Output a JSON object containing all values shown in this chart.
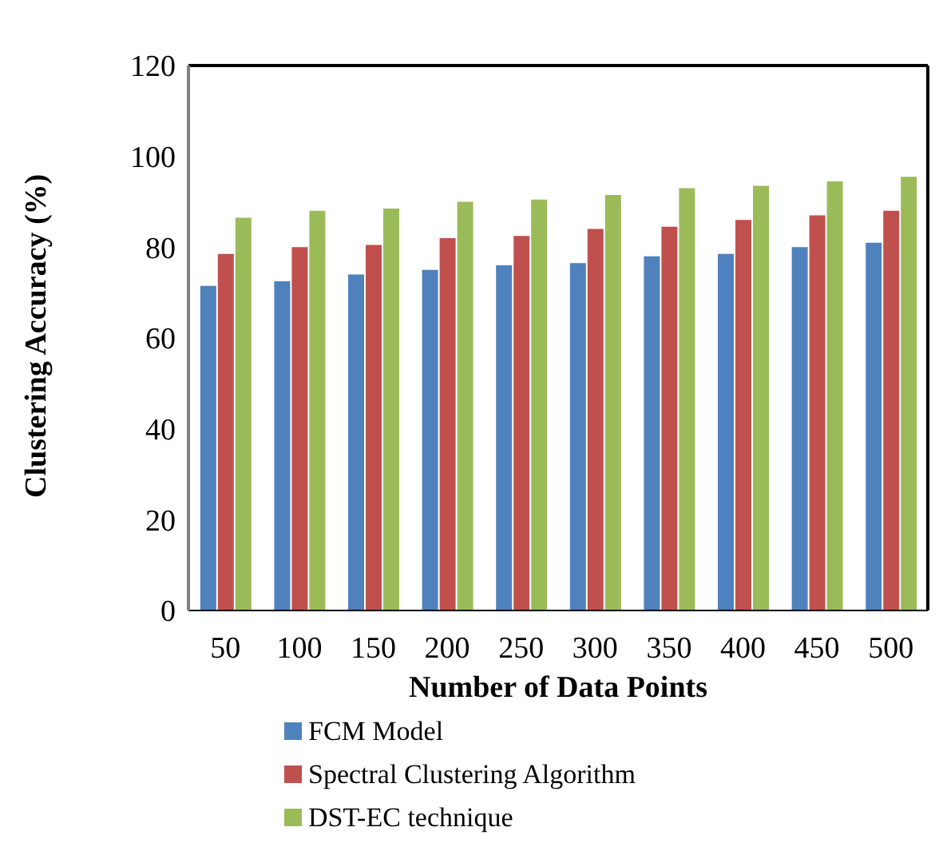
{
  "chart_data": {
    "type": "bar",
    "xlabel": "Number of Data Points",
    "ylabel": "Clustering Accuracy (%)",
    "categories": [
      "50",
      "100",
      "150",
      "200",
      "250",
      "300",
      "350",
      "400",
      "450",
      "500"
    ],
    "series": [
      {
        "name": "FCM Model",
        "color": "#4f81bd",
        "values": [
          71.5,
          72.5,
          74,
          75,
          76,
          76.5,
          78,
          78.5,
          80,
          81
        ]
      },
      {
        "name": "Spectral Clustering Algorithm",
        "color": "#c0504d",
        "values": [
          78.5,
          80,
          80.5,
          82,
          82.5,
          84,
          84.5,
          86,
          87,
          88
        ]
      },
      {
        "name": "DST-EC technique",
        "color": "#9bbb59",
        "values": [
          86.5,
          88,
          88.5,
          90,
          90.5,
          91.5,
          93,
          93.5,
          94.5,
          95.5
        ]
      }
    ],
    "ylim": [
      0,
      120
    ],
    "yticks": [
      0,
      20,
      40,
      60,
      80,
      100,
      120
    ],
    "legend": "bottom"
  }
}
